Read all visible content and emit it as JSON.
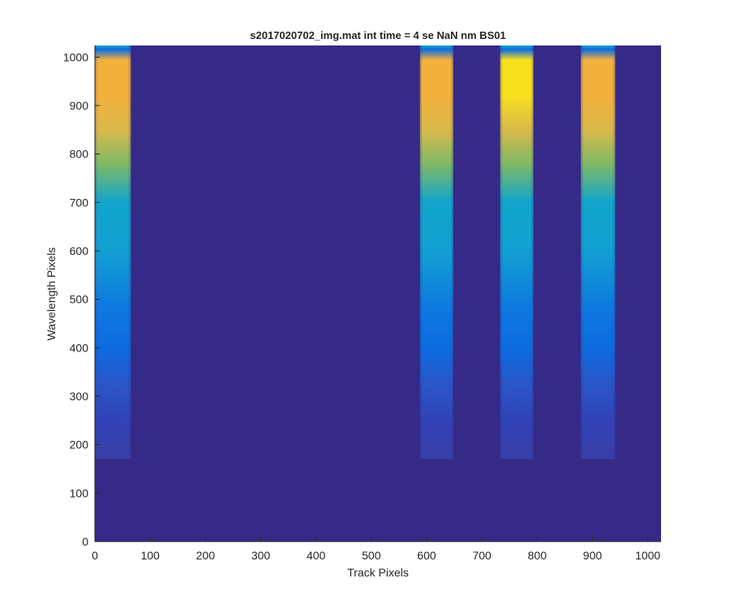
{
  "chart_data": {
    "type": "heatmap",
    "title": "s2017020702_img.mat int time = 4 se  NaN nm BS01",
    "xlabel": "Track Pixels",
    "ylabel": "Wavelength Pixels",
    "xlim": [
      0,
      1024
    ],
    "ylim": [
      0,
      1024
    ],
    "xticks": [
      "0",
      "100",
      "200",
      "300",
      "400",
      "500",
      "600",
      "700",
      "800",
      "900",
      "1000"
    ],
    "yticks": [
      "0",
      "100",
      "200",
      "300",
      "400",
      "500",
      "600",
      "700",
      "800",
      "900",
      "1000"
    ],
    "colormap": "parula",
    "background_level": 0,
    "signal_rows": [
      170,
      1024
    ],
    "bands": [
      {
        "x_start": 0,
        "x_end": 65,
        "peak": 0.85
      },
      {
        "x_start": 588,
        "x_end": 648,
        "peak": 0.86
      },
      {
        "x_start": 733,
        "x_end": 793,
        "peak": 0.95
      },
      {
        "x_start": 879,
        "x_end": 941,
        "peak": 0.87
      }
    ],
    "grid": false,
    "colors": {
      "background": "#352a87",
      "low": "#3142b8",
      "mid_blue": "#0d6ce0",
      "cyan": "#11a5cb",
      "green": "#7fb964",
      "orange": "#f2b03c",
      "yellow": "#f7df1c"
    }
  }
}
